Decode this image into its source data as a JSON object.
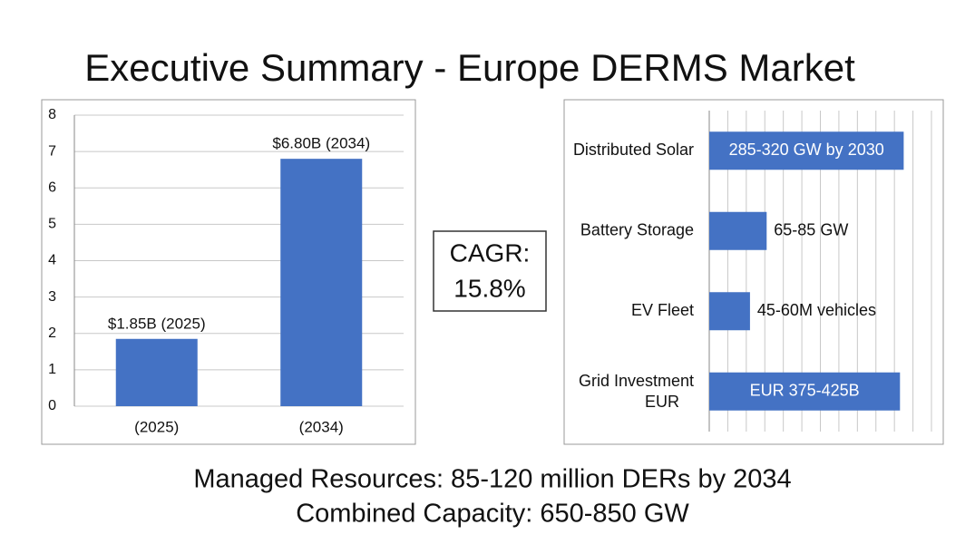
{
  "title": "Executive Summary - Europe DERMS Market",
  "cagr": {
    "label": "CAGR:",
    "value": "15.8%"
  },
  "footer": [
    "Managed Resources: 85-120 million DERs by 2034",
    "Combined Capacity: 650-850 GW"
  ],
  "chart_data": [
    {
      "type": "bar",
      "categories": [
        "(2025)",
        "(2034)"
      ],
      "values": [
        1.85,
        6.8
      ],
      "value_labels": [
        "$1.85B (2025)",
        "$6.80B (2034)"
      ],
      "color": "#4472c4",
      "ylim": [
        0,
        8
      ],
      "yticks": [
        0,
        1,
        2,
        3,
        4,
        5,
        6,
        7,
        8
      ],
      "grid": true
    },
    {
      "type": "hbar",
      "categories": [
        "Distributed Solar",
        "Battery Storage",
        "EV Fleet",
        "Grid Investment EUR"
      ],
      "values": [
        10.5,
        3.1,
        2.2,
        10.3
      ],
      "bar_texts": [
        "285-320 GW by 2030",
        "65-85 GW",
        "45-60M vehicles",
        "EUR 375-425B"
      ],
      "color": "#4472c4",
      "xlim": [
        0,
        12
      ],
      "xticks": [
        0,
        1,
        2,
        3,
        4,
        5,
        6,
        7,
        8,
        9,
        10,
        11,
        12
      ],
      "show_xtick_labels": false,
      "grid": true
    }
  ]
}
